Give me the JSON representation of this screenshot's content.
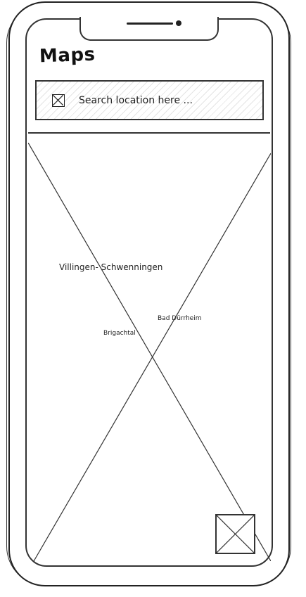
{
  "app": {
    "title": "Maps"
  },
  "search": {
    "placeholder": "Search location here ...",
    "icon": "image-placeholder-icon"
  },
  "map": {
    "labels": [
      {
        "text": "Villingen- Schwenningen"
      },
      {
        "text": "Bad Dürrheim"
      },
      {
        "text": "Brigachtal"
      }
    ],
    "locate_button_icon": "image-placeholder-icon"
  }
}
